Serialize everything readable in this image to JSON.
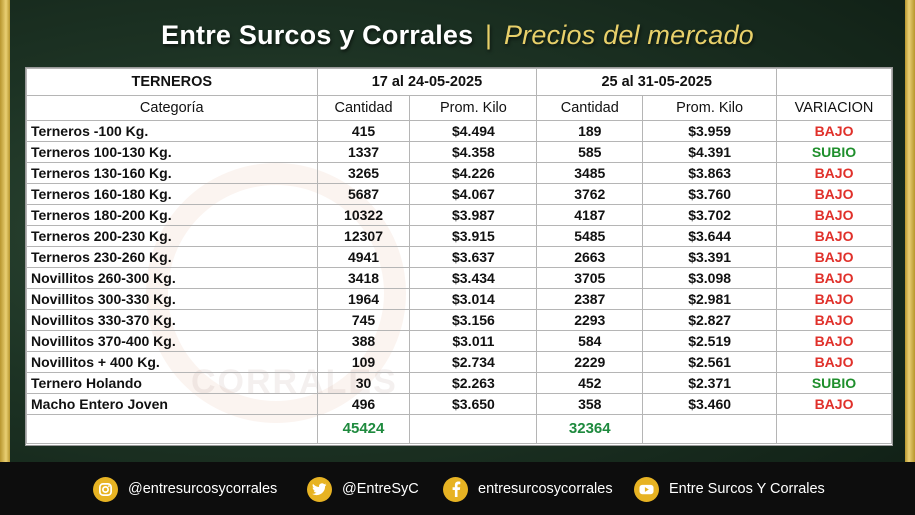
{
  "header": {
    "title_main": "Entre Surcos y Corrales",
    "title_sep": "|",
    "title_sub": "Precios del mercado"
  },
  "table": {
    "section_label": "TERNEROS",
    "period1": "17 al 24-05-2025",
    "period2": "25 al 31-05-2025",
    "col_category": "Categoría",
    "col_qty1": "Cantidad",
    "col_price1": "Prom. Kilo",
    "col_qty2": "Cantidad",
    "col_price2": "Prom. Kilo",
    "col_variation": "VARIACION",
    "rows": [
      {
        "cat": "Terneros -100 Kg.",
        "q1": "415",
        "p1": "$4.494",
        "q2": "189",
        "p2": "$3.959",
        "var": "BAJO"
      },
      {
        "cat": "Terneros 100-130 Kg.",
        "q1": "1337",
        "p1": "$4.358",
        "q2": "585",
        "p2": "$4.391",
        "var": "SUBIO"
      },
      {
        "cat": "Terneros 130-160 Kg.",
        "q1": "3265",
        "p1": "$4.226",
        "q2": "3485",
        "p2": "$3.863",
        "var": "BAJO"
      },
      {
        "cat": "Terneros 160-180 Kg.",
        "q1": "5687",
        "p1": "$4.067",
        "q2": "3762",
        "p2": "$3.760",
        "var": "BAJO"
      },
      {
        "cat": "Terneros 180-200 Kg.",
        "q1": "10322",
        "p1": "$3.987",
        "q2": "4187",
        "p2": "$3.702",
        "var": "BAJO"
      },
      {
        "cat": "Terneros 200-230 Kg.",
        "q1": "12307",
        "p1": "$3.915",
        "q2": "5485",
        "p2": "$3.644",
        "var": "BAJO"
      },
      {
        "cat": "Terneros 230-260 Kg.",
        "q1": "4941",
        "p1": "$3.637",
        "q2": "2663",
        "p2": "$3.391",
        "var": "BAJO"
      },
      {
        "cat": "Novillitos 260-300 Kg.",
        "q1": "3418",
        "p1": "$3.434",
        "q2": "3705",
        "p2": "$3.098",
        "var": "BAJO"
      },
      {
        "cat": "Novillitos 300-330 Kg.",
        "q1": "1964",
        "p1": "$3.014",
        "q2": "2387",
        "p2": "$2.981",
        "var": "BAJO"
      },
      {
        "cat": "Novillitos 330-370 Kg.",
        "q1": "745",
        "p1": "$3.156",
        "q2": "2293",
        "p2": "$2.827",
        "var": "BAJO"
      },
      {
        "cat": "Novillitos 370-400 Kg.",
        "q1": "388",
        "p1": "$3.011",
        "q2": "584",
        "p2": "$2.519",
        "var": "BAJO"
      },
      {
        "cat": "Novillitos  + 400 Kg.",
        "q1": "109",
        "p1": "$2.734",
        "q2": "2229",
        "p2": "$2.561",
        "var": "BAJO"
      },
      {
        "cat": "Ternero Holando",
        "q1": "30",
        "p1": "$2.263",
        "q2": "452",
        "p2": "$2.371",
        "var": "SUBIO"
      },
      {
        "cat": "Macho Entero Joven",
        "q1": "496",
        "p1": "$3.650",
        "q2": "358",
        "p2": "$3.460",
        "var": "BAJO"
      }
    ],
    "total1": "45424",
    "total2": "32364"
  },
  "watermark": {
    "text": "CORRALES"
  },
  "colors": {
    "bajo": "#e0302a",
    "subio": "#1f8f2c",
    "total": "#1e8a3e",
    "gold": "#e8d06a",
    "icon_bg": "#e7b323"
  },
  "footer": {
    "items": [
      {
        "icon": "instagram-icon",
        "label": "@entresurcosycorrales"
      },
      {
        "icon": "twitter-icon",
        "label": "@EntreSyC"
      },
      {
        "icon": "facebook-icon",
        "label": "entresurcosycorrales"
      },
      {
        "icon": "youtube-icon",
        "label": "Entre Surcos Y Corrales"
      }
    ]
  }
}
